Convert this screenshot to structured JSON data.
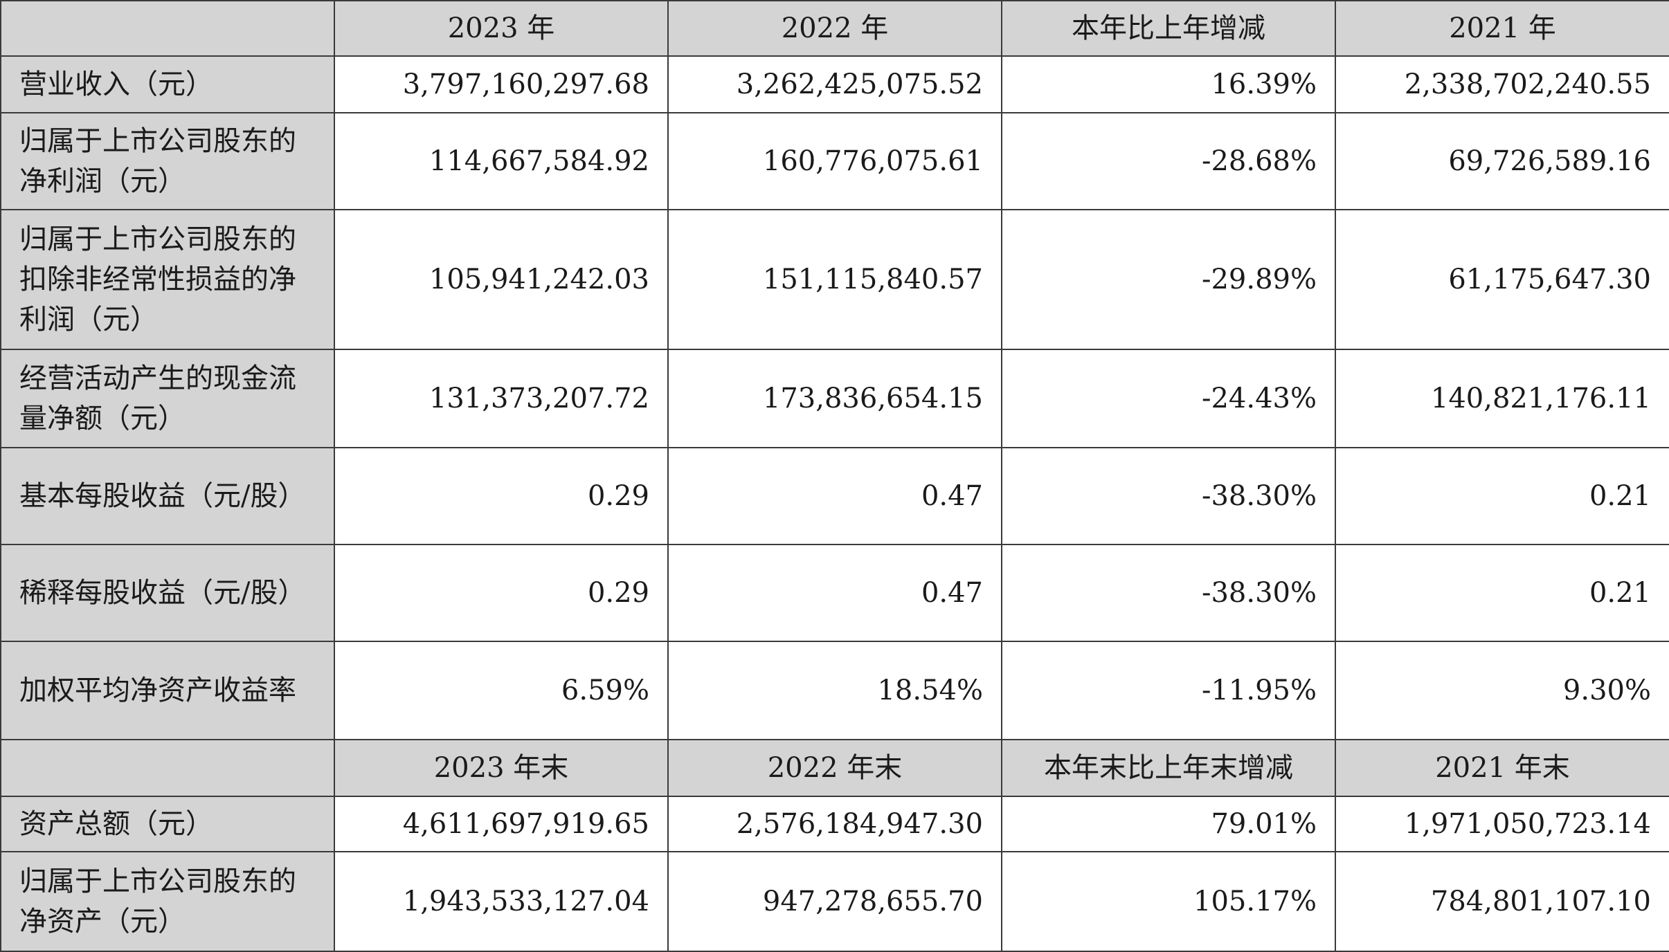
{
  "headers_annual": [
    "",
    "2023 年",
    "2022 年",
    "本年比上年增减",
    "2021 年"
  ],
  "headers_yearend": [
    "",
    "2023 年末",
    "2022 年末",
    "本年末比上年末增减",
    "2021 年末"
  ],
  "rows_annual": [
    {
      "label": "营业收入（元）",
      "v2023": "3,797,160,297.68",
      "v2022": "3,262,425,075.52",
      "change": "16.39%",
      "v2021": "2,338,702,240.55"
    },
    {
      "label": "归属于上市公司股东的净利润（元）",
      "v2023": "114,667,584.92",
      "v2022": "160,776,075.61",
      "change": "-28.68%",
      "v2021": "69,726,589.16"
    },
    {
      "label": "归属于上市公司股东的扣除非经常性损益的净利润（元）",
      "v2023": "105,941,242.03",
      "v2022": "151,115,840.57",
      "change": "-29.89%",
      "v2021": "61,175,647.30"
    },
    {
      "label": "经营活动产生的现金流量净额（元）",
      "v2023": "131,373,207.72",
      "v2022": "173,836,654.15",
      "change": "-24.43%",
      "v2021": "140,821,176.11"
    },
    {
      "label": "基本每股收益（元/股）",
      "v2023": "0.29",
      "v2022": "0.47",
      "change": "-38.30%",
      "v2021": "0.21"
    },
    {
      "label": "稀释每股收益（元/股）",
      "v2023": "0.29",
      "v2022": "0.47",
      "change": "-38.30%",
      "v2021": "0.21"
    },
    {
      "label": "加权平均净资产收益率",
      "v2023": "6.59%",
      "v2022": "18.54%",
      "change": "-11.95%",
      "v2021": "9.30%"
    }
  ],
  "rows_yearend": [
    {
      "label": "资产总额（元）",
      "v2023": "4,611,697,919.65",
      "v2022": "2,576,184,947.30",
      "change": "79.01%",
      "v2021": "1,971,050,723.14"
    },
    {
      "label": "归属于上市公司股东的净资产（元）",
      "v2023": "1,943,533,127.04",
      "v2022": "947,278,655.70",
      "change": "105.17%",
      "v2021": "784,801,107.10"
    }
  ]
}
